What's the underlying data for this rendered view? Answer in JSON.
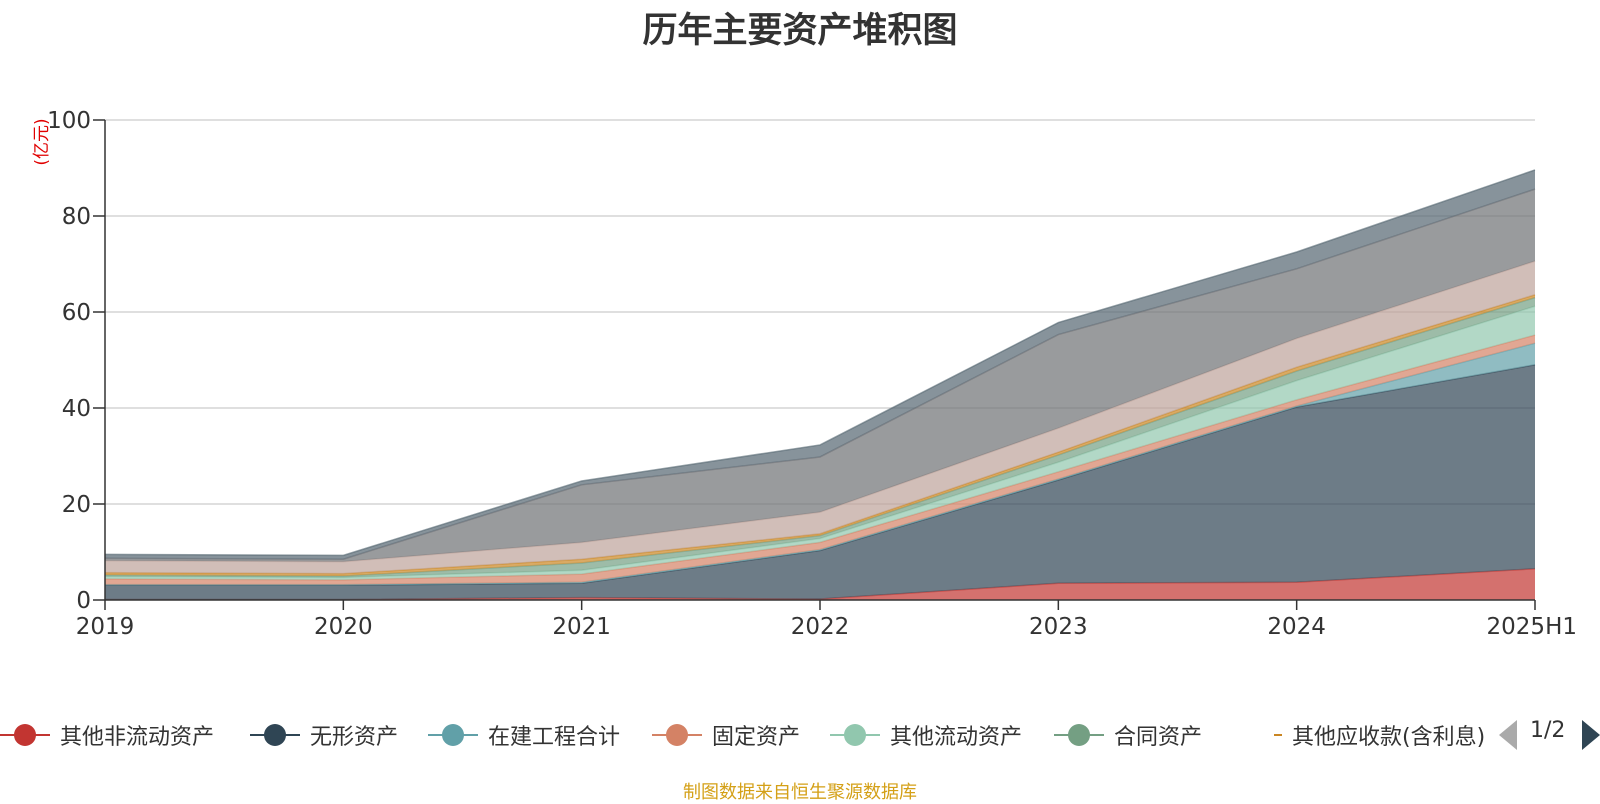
{
  "chart_data": {
    "type": "area",
    "stacked": true,
    "title": "历年主要资产堆积图",
    "ylabel": "(亿元)",
    "x": [
      "2019",
      "2020",
      "2021",
      "2022",
      "2023",
      "2024",
      "2025H1"
    ],
    "ylim": [
      0,
      100
    ],
    "yticks": [
      0,
      20,
      40,
      60,
      80,
      100
    ],
    "grid": true,
    "series": [
      {
        "name": "其他非流动资产",
        "color": "#c23531",
        "values": [
          0.1,
          0.1,
          0.5,
          0.2,
          3.5,
          3.7,
          6.5
        ]
      },
      {
        "name": "无形资产",
        "color": "#2f4554",
        "values": [
          3.0,
          3.0,
          3.0,
          10.1,
          21.5,
          36.5,
          42.5
        ]
      },
      {
        "name": "在建工程合计",
        "color": "#61a0a8",
        "values": [
          0.1,
          0.1,
          0.2,
          0.2,
          0.2,
          0.2,
          4.5
        ]
      },
      {
        "name": "固定资产",
        "color": "#d48265",
        "values": [
          1.2,
          1.0,
          1.7,
          1.5,
          1.5,
          1.3,
          1.7
        ]
      },
      {
        "name": "其他流动资产",
        "color": "#91c7ae",
        "values": [
          0.5,
          0.5,
          0.8,
          0.8,
          2.0,
          4.0,
          6.0
        ]
      },
      {
        "name": "合同资产",
        "color": "#749f83",
        "values": [
          0.3,
          0.3,
          1.5,
          0.6,
          1.5,
          2.0,
          1.8
        ]
      },
      {
        "name": "其他应收款(含利息)",
        "color": "#ca8622",
        "values": [
          0.5,
          0.5,
          0.8,
          0.4,
          0.6,
          0.8,
          0.6
        ]
      },
      {
        "name": "",
        "color": "#bda29a",
        "values": [
          2.5,
          2.5,
          3.5,
          4.5,
          5.0,
          6.0,
          7.0
        ]
      },
      {
        "name": "",
        "color": "#6e7074",
        "values": [
          0.5,
          0.5,
          12.0,
          11.5,
          19.5,
          14.5,
          15.0
        ]
      },
      {
        "name": "",
        "color": "#546570",
        "values": [
          0.8,
          0.8,
          0.8,
          2.5,
          2.5,
          3.5,
          4.0
        ]
      }
    ]
  },
  "legend": {
    "items": [
      {
        "label": "其他非流动资产",
        "color": "#c23531"
      },
      {
        "label": "无形资产",
        "color": "#2f4554"
      },
      {
        "label": "在建工程合计",
        "color": "#61a0a8"
      },
      {
        "label": "固定资产",
        "color": "#d48265"
      },
      {
        "label": "其他流动资产",
        "color": "#91c7ae"
      },
      {
        "label": "合同资产",
        "color": "#749f83"
      },
      {
        "label": "其他应收款(含利息)",
        "color": "#ca8622"
      }
    ],
    "page_indicator": "1/2"
  },
  "source_note": "制图数据来自恒生聚源数据库"
}
